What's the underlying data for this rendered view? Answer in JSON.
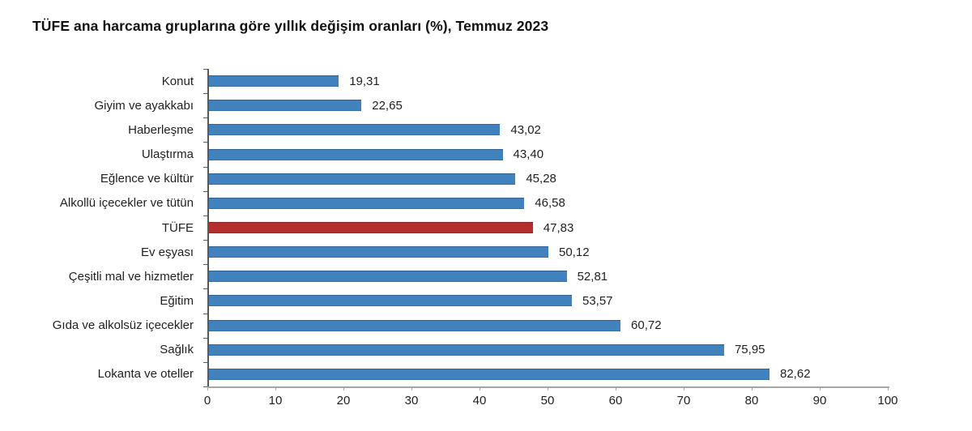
{
  "title": "TÜFE ana harcama gruplarına göre yıllık değişim oranları (%), Temmuz 2023",
  "chart_data": {
    "type": "bar",
    "orientation": "horizontal",
    "title": "TÜFE ana harcama gruplarına göre yıllık değişim oranları (%), Temmuz 2023",
    "categories": [
      "Konut",
      "Giyim ve ayakkabı",
      "Haberleşme",
      "Ulaştırma",
      "Eğlence ve kültür",
      "Alkollü içecekler ve tütün",
      "TÜFE",
      "Ev eşyası",
      "Çeşitli mal ve hizmetler",
      "Eğitim",
      "Gıda ve alkolsüz içecekler",
      "Sağlık",
      "Lokanta ve oteller"
    ],
    "values": [
      19.31,
      22.65,
      43.02,
      43.4,
      45.28,
      46.58,
      47.83,
      50.12,
      52.81,
      53.57,
      60.72,
      75.95,
      82.62
    ],
    "value_labels": [
      "19,31",
      "22,65",
      "43,02",
      "43,40",
      "45,28",
      "46,58",
      "47,83",
      "50,12",
      "52,81",
      "53,57",
      "60,72",
      "75,95",
      "82,62"
    ],
    "highlight_category": "TÜFE",
    "bar_color": "#4181BD",
    "highlight_color": "#B22F2B",
    "xlim": [
      0,
      100
    ],
    "x_ticks": [
      0,
      10,
      20,
      30,
      40,
      50,
      60,
      70,
      80,
      90,
      100
    ],
    "grid": false,
    "legend": "none",
    "value_label_position": "right-of-bar"
  }
}
